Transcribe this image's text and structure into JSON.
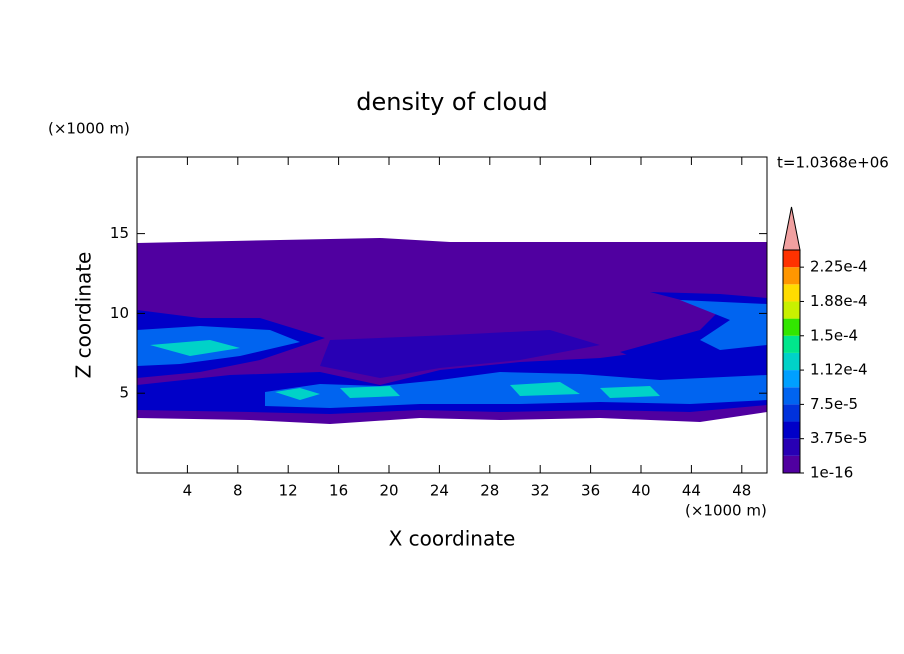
{
  "chart_data": {
    "type": "contour",
    "title": "density of cloud",
    "x_label": "X coordinate",
    "y_label": "Z coordinate",
    "x_unit": "(×1000 m)",
    "y_unit": "(×1000 m)",
    "time_label": "t=1.0368e+06",
    "xlim": [
      0,
      50
    ],
    "xticks": [
      4,
      8,
      12,
      16,
      20,
      24,
      28,
      32,
      36,
      40,
      44,
      48
    ],
    "ylim": [
      0,
      19.8
    ],
    "yticks": [
      5,
      10,
      15
    ],
    "colorbar": {
      "lim": [
        0,
        0.00024375
      ],
      "ticks": [
        {
          "value": 1e-16,
          "label": "1e-16"
        },
        {
          "value": 3.75e-05,
          "label": "3.75e-5"
        },
        {
          "value": 7.5e-05,
          "label": "7.5e-5"
        },
        {
          "value": 0.0001125,
          "label": "1.12e-4"
        },
        {
          "value": 0.00015,
          "label": "1.5e-4"
        },
        {
          "value": 0.0001875,
          "label": "1.88e-4"
        },
        {
          "value": 0.000225,
          "label": "2.25e-4"
        }
      ],
      "colors": [
        "#5000a0",
        "#2800b4",
        "#0000c8",
        "#0032dc",
        "#0064f0",
        "#00a0ff",
        "#00d2c8",
        "#00e68c",
        "#32e600",
        "#c8f000",
        "#ffdc00",
        "#ff9600",
        "#ff3200"
      ],
      "extend_color": "#f0a0a0"
    }
  }
}
